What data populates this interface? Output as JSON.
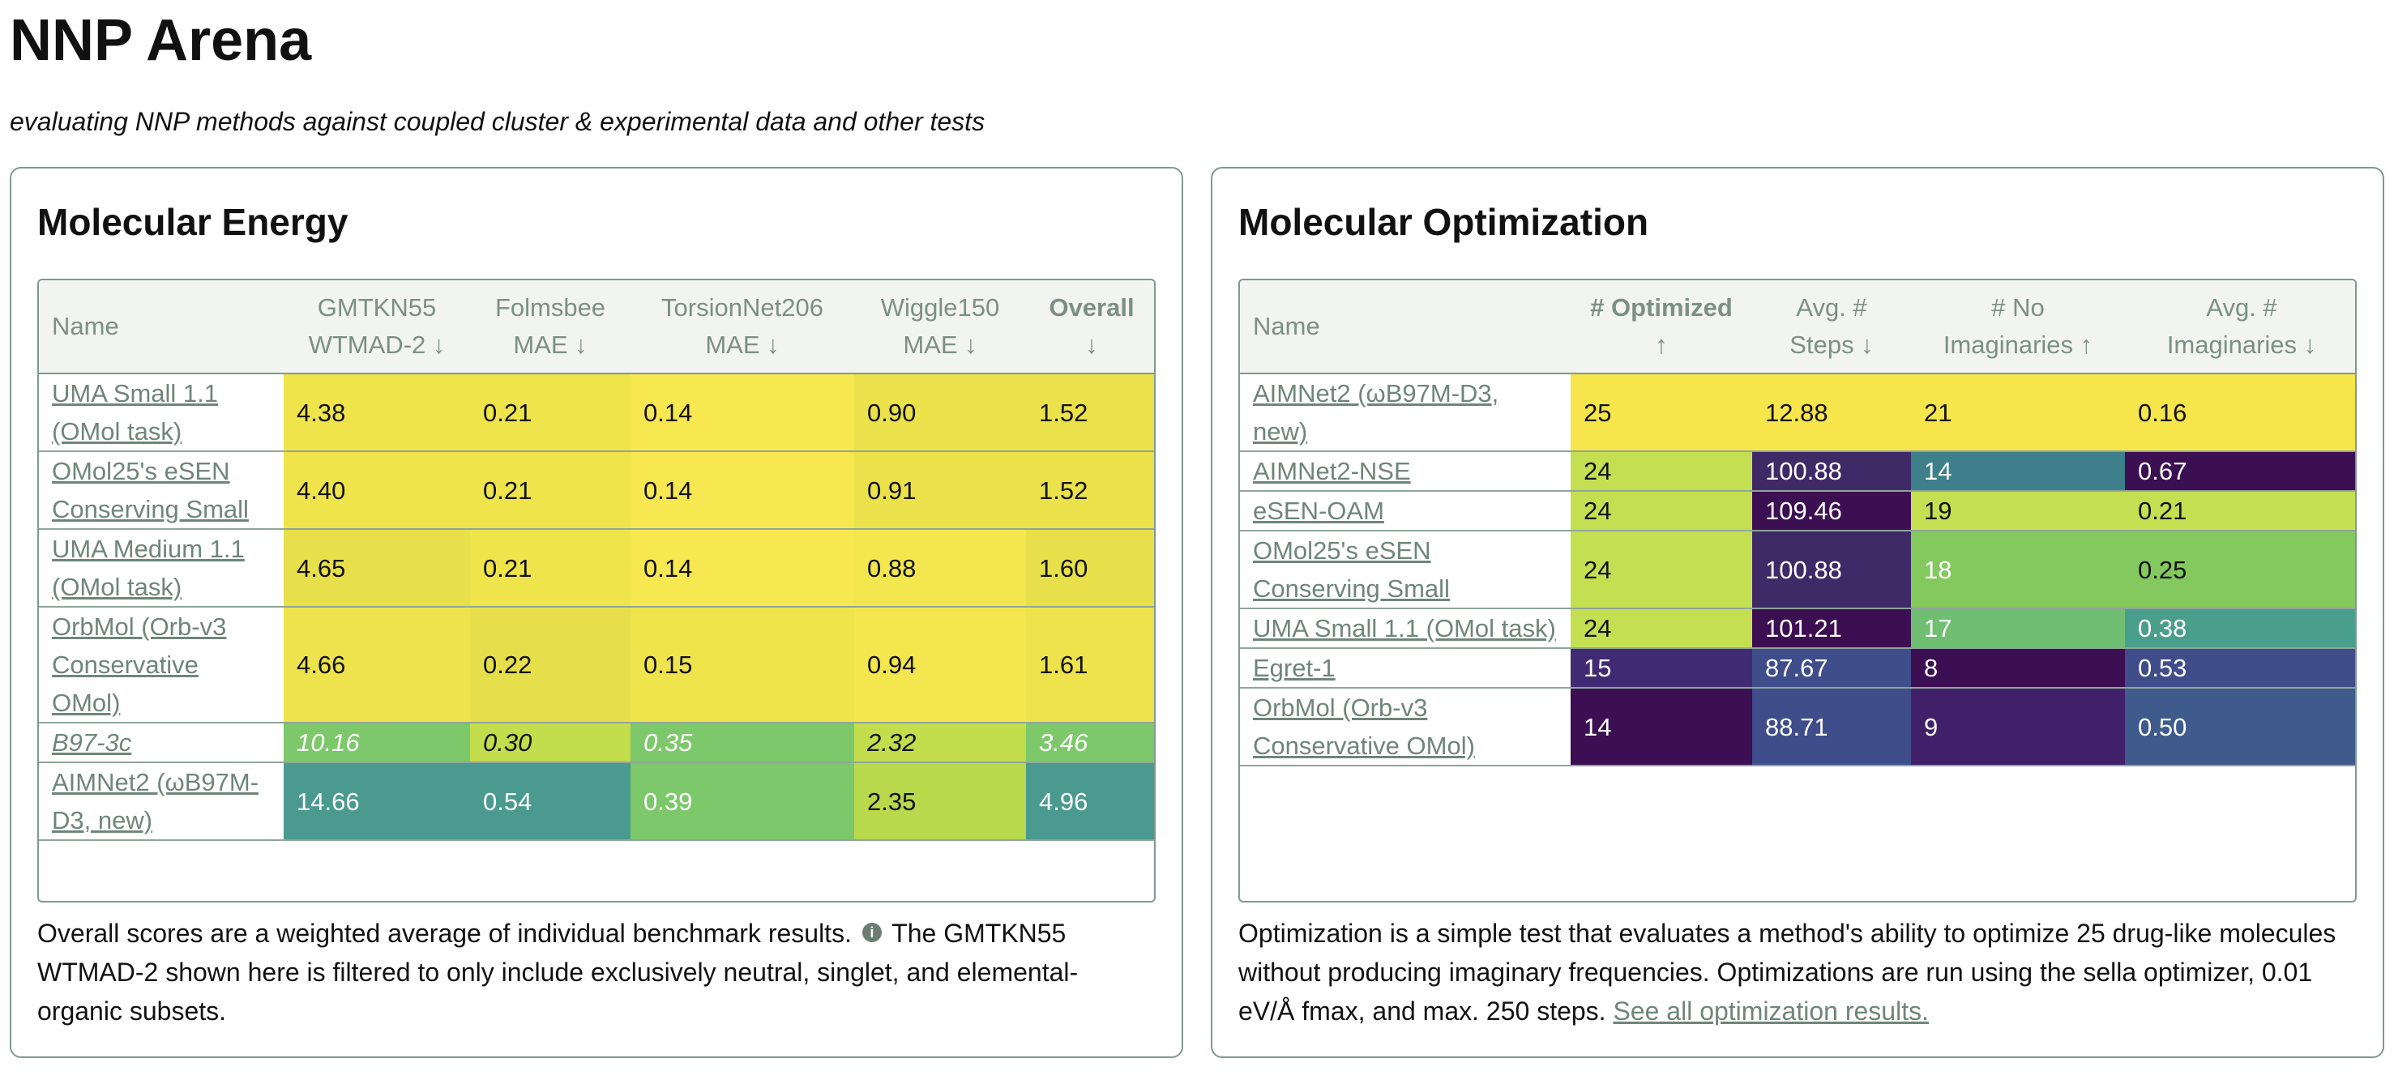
{
  "header": {
    "title": "NNP Arena",
    "subtitle": "evaluating NNP methods against coupled cluster & experimental data and other tests"
  },
  "energy": {
    "title": "Molecular Energy",
    "columns": [
      {
        "line1": "Name",
        "line2": ""
      },
      {
        "line1": "GMTKN55",
        "line2": "WTMAD-2 ↓"
      },
      {
        "line1": "Folmsbee",
        "line2": "MAE ↓"
      },
      {
        "line1": "TorsionNet206",
        "line2": "MAE ↓"
      },
      {
        "line1": "Wiggle150",
        "line2": "MAE ↓"
      },
      {
        "line1": "Overall",
        "line2": "↓"
      }
    ],
    "rows": [
      {
        "name": "UMA Small 1.1 (OMol task)",
        "values": [
          "4.38",
          "0.21",
          "0.14",
          "0.90",
          "1.52"
        ],
        "colors": [
          "#efe44b",
          "#efe44b",
          "#f7e851",
          "#ebe24b",
          "#ebe24b"
        ]
      },
      {
        "name": "OMol25's eSEN Conserving Small",
        "values": [
          "4.40",
          "0.21",
          "0.14",
          "0.91",
          "1.52"
        ],
        "colors": [
          "#efe44b",
          "#efe44b",
          "#f7e851",
          "#ebe24b",
          "#ebe24b"
        ]
      },
      {
        "name": "UMA Medium 1.1 (OMol task)",
        "values": [
          "4.65",
          "0.21",
          "0.14",
          "0.88",
          "1.60"
        ],
        "colors": [
          "#e7e04a",
          "#efe44b",
          "#f7e851",
          "#f4e64f",
          "#e7e04a"
        ]
      },
      {
        "name": "OrbMol (Orb-v3 Conservative OMol)",
        "values": [
          "4.66",
          "0.22",
          "0.15",
          "0.94",
          "1.61"
        ],
        "colors": [
          "#eee34c",
          "#e6df4b",
          "#efe44b",
          "#f4e64f",
          "#eee34c"
        ]
      },
      {
        "name": "B97-3c",
        "italic": true,
        "values": [
          "10.16",
          "0.30",
          "0.35",
          "2.32",
          "3.46"
        ],
        "colors": [
          "#7cc86a",
          "#c3dd4d",
          "#7cc86a",
          "#c3dd4d",
          "#7cc86a"
        ],
        "dark_text": [
          false,
          true,
          false,
          true,
          false
        ]
      },
      {
        "name": "AIMNet2 (ωB97M-D3, new)",
        "values": [
          "14.66",
          "0.54",
          "0.39",
          "2.35",
          "4.96"
        ],
        "colors": [
          "#4a9a8f",
          "#4a9a8f",
          "#7cc86a",
          "#b8d94b",
          "#4a9a8f"
        ],
        "dark_text": [
          false,
          false,
          false,
          true,
          false
        ]
      }
    ],
    "note_before_icon": "Overall scores are a weighted average of individual benchmark results.",
    "info_icon": "info-icon",
    "note_after_icon": "The GMTKN55 WTMAD-2 shown here is filtered to only include exclusively neutral, singlet, and elemental-organic subsets."
  },
  "optimization": {
    "title": "Molecular Optimization",
    "columns": [
      {
        "line1": "Name",
        "line2": ""
      },
      {
        "line1": "# Optimized",
        "line2": "↑"
      },
      {
        "line1": "Avg. #",
        "line2": "Steps ↓"
      },
      {
        "line1": "# No",
        "line2": "Imaginaries ↑"
      },
      {
        "line1": "Avg. #",
        "line2": "Imaginaries ↓"
      }
    ],
    "rows": [
      {
        "name": "AIMNet2 (ωB97M-D3, new)",
        "values": [
          "25",
          "12.88",
          "21",
          "0.16"
        ],
        "colors": [
          "#f7e54c",
          "#f7e54c",
          "#f7e54c",
          "#f7e54c"
        ],
        "dark_text": [
          true,
          true,
          true,
          true
        ]
      },
      {
        "name": "AIMNet2-NSE",
        "values": [
          "24",
          "100.88",
          "14",
          "0.67"
        ],
        "colors": [
          "#c5df52",
          "#3f2a68",
          "#3d7f8b",
          "#3c0e52"
        ],
        "dark_text": [
          true,
          false,
          false,
          false
        ]
      },
      {
        "name": "eSEN-OAM",
        "values": [
          "24",
          "109.46",
          "19",
          "0.21"
        ],
        "colors": [
          "#c5df52",
          "#3c0e52",
          "#c5df52",
          "#c5df52"
        ],
        "dark_text": [
          true,
          false,
          true,
          true
        ]
      },
      {
        "name": "OMol25's eSEN Conserving Small",
        "values": [
          "24",
          "100.88",
          "18",
          "0.25"
        ],
        "colors": [
          "#c5df52",
          "#3f2a68",
          "#83c95e",
          "#83c95e"
        ],
        "dark_text": [
          true,
          false,
          false,
          true
        ]
      },
      {
        "name": "UMA Small 1.1 (OMol task)",
        "values": [
          "24",
          "101.21",
          "17",
          "0.38"
        ],
        "colors": [
          "#c5df52",
          "#3c0e52",
          "#6fbe72",
          "#4a9e8c"
        ],
        "dark_text": [
          true,
          false,
          false,
          false
        ]
      },
      {
        "name": "Egret-1",
        "values": [
          "15",
          "87.67",
          "8",
          "0.53"
        ],
        "colors": [
          "#412a74",
          "#3f4d8a",
          "#3c0e52",
          "#3f4d8a"
        ],
        "dark_text": [
          false,
          false,
          false,
          false
        ]
      },
      {
        "name": "OrbMol (Orb-v3 Conservative OMol)",
        "values": [
          "14",
          "88.71",
          "9",
          "0.50"
        ],
        "colors": [
          "#3c0e52",
          "#3f4d8a",
          "#41206a",
          "#3e5b8c"
        ],
        "dark_text": [
          false,
          false,
          false,
          false
        ]
      }
    ],
    "note_text": "Optimization is a simple test that evaluates a method's ability to optimize 25 drug-like molecules without producing imaginary frequencies. Optimizations are run using the sella optimizer, 0.01 eV/Å fmax, and max. 250 steps.",
    "note_link": "See all optimization results."
  }
}
